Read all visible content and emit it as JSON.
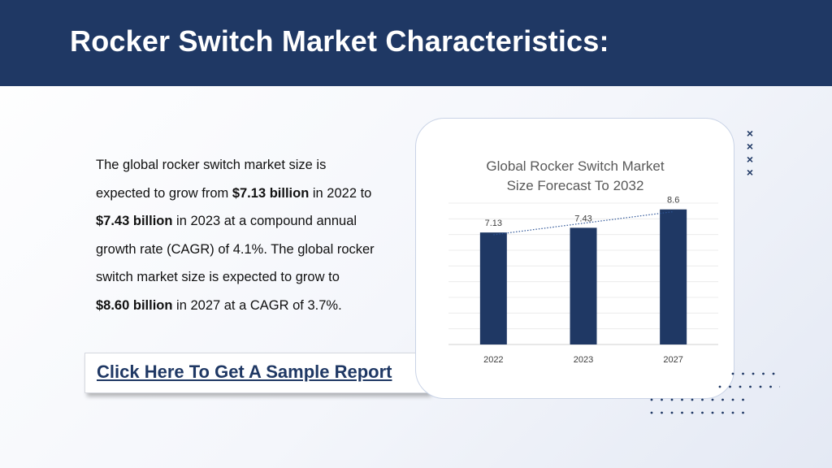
{
  "header": {
    "title": "Rocker Switch Market Characteristics:"
  },
  "body": {
    "p1": "The global rocker switch market size is expected to grow from ",
    "b1": "$7.13 billion",
    "p2": " in 2022 to ",
    "b2": "$7.43 billion",
    "p3": " in 2023 at a compound annual growth rate (CAGR) of 4.1%. The global rocker switch market size is expected to grow to ",
    "b3": "$8.60 billion",
    "p4": " in 2027 at a CAGR of 3.7%."
  },
  "cta": {
    "label": "Click Here To Get A Sample Report"
  },
  "decor": {
    "mark": "×"
  },
  "colors": {
    "primary": "#1f3864",
    "trend": "#2e5597"
  },
  "chart_data": {
    "type": "bar",
    "title": "Global Rocker Switch Market Size Forecast To 2032",
    "title_lines": [
      "Global Rocker Switch Market",
      "Size Forecast To 2032"
    ],
    "categories": [
      "2022",
      "2023",
      "2027"
    ],
    "values": [
      7.13,
      7.43,
      8.6
    ],
    "value_labels": [
      "7.13",
      "7.43",
      "8.6"
    ],
    "trendline": "linear",
    "ylim": [
      0,
      9
    ],
    "grid": true,
    "legend": "none"
  }
}
